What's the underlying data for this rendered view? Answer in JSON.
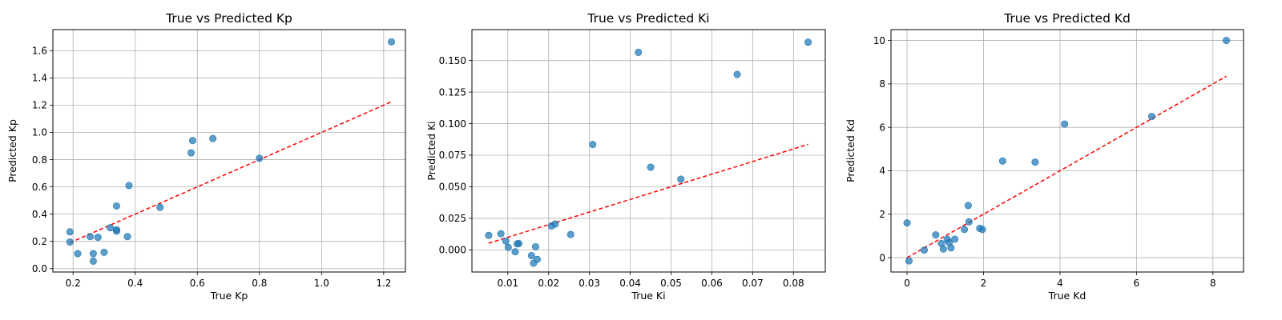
{
  "chart_data": [
    {
      "type": "scatter",
      "title": "True vs Predicted Kp",
      "xlabel": "True Kp",
      "ylabel": "Predicted Kp",
      "xlim": [
        0.135,
        1.27
      ],
      "ylim": [
        -0.025,
        1.755
      ],
      "xticks": [
        0.2,
        0.4,
        0.6,
        0.8,
        1.0,
        1.2
      ],
      "xtick_labels": [
        "0.2",
        "0.4",
        "0.6",
        "0.8",
        "1.0",
        "1.2"
      ],
      "yticks": [
        0.0,
        0.2,
        0.4,
        0.6,
        0.8,
        1.0,
        1.2,
        1.4,
        1.6
      ],
      "ytick_labels": [
        "0.0",
        "0.2",
        "0.4",
        "0.6",
        "0.8",
        "1.0",
        "1.2",
        "1.4",
        "1.6"
      ],
      "grid": true,
      "point_color": "#1f77b4",
      "line_color": "#ff0000",
      "diagonal": [
        0.19,
        1.225
      ],
      "points": [
        {
          "x": 0.19,
          "y": 0.27
        },
        {
          "x": 0.19,
          "y": 0.195
        },
        {
          "x": 0.215,
          "y": 0.11
        },
        {
          "x": 0.255,
          "y": 0.235
        },
        {
          "x": 0.265,
          "y": 0.11
        },
        {
          "x": 0.265,
          "y": 0.055
        },
        {
          "x": 0.28,
          "y": 0.23
        },
        {
          "x": 0.3,
          "y": 0.12
        },
        {
          "x": 0.32,
          "y": 0.3
        },
        {
          "x": 0.34,
          "y": 0.285
        },
        {
          "x": 0.34,
          "y": 0.275
        },
        {
          "x": 0.34,
          "y": 0.46
        },
        {
          "x": 0.375,
          "y": 0.235
        },
        {
          "x": 0.38,
          "y": 0.61
        },
        {
          "x": 0.48,
          "y": 0.45
        },
        {
          "x": 0.58,
          "y": 0.85
        },
        {
          "x": 0.585,
          "y": 0.94
        },
        {
          "x": 0.65,
          "y": 0.955
        },
        {
          "x": 0.8,
          "y": 0.81
        },
        {
          "x": 1.225,
          "y": 1.665
        }
      ]
    },
    {
      "type": "scatter",
      "title": "True vs Predicted Ki",
      "xlabel": "True Ki",
      "ylabel": "Predicted Ki",
      "xlim": [
        0.0012,
        0.0878
      ],
      "ylim": [
        -0.0175,
        0.1745
      ],
      "xticks": [
        0.01,
        0.02,
        0.03,
        0.04,
        0.05,
        0.06,
        0.07,
        0.08
      ],
      "xtick_labels": [
        "0.01",
        "0.02",
        "0.03",
        "0.04",
        "0.05",
        "0.06",
        "0.07",
        "0.08"
      ],
      "yticks": [
        0.0,
        0.025,
        0.05,
        0.075,
        0.1,
        0.125,
        0.15
      ],
      "ytick_labels": [
        "0.000",
        "0.025",
        "0.050",
        "0.075",
        "0.100",
        "0.125",
        "0.150"
      ],
      "grid": true,
      "point_color": "#1f77b4",
      "line_color": "#ff0000",
      "diagonal": [
        0.0053,
        0.0836
      ],
      "points": [
        {
          "x": 0.0053,
          "y": 0.0115
        },
        {
          "x": 0.0083,
          "y": 0.0128
        },
        {
          "x": 0.0095,
          "y": 0.007
        },
        {
          "x": 0.0101,
          "y": 0.002
        },
        {
          "x": 0.0118,
          "y": -0.0015
        },
        {
          "x": 0.0123,
          "y": 0.0048
        },
        {
          "x": 0.0127,
          "y": 0.005
        },
        {
          "x": 0.0158,
          "y": -0.0045
        },
        {
          "x": 0.0163,
          "y": -0.0105
        },
        {
          "x": 0.0168,
          "y": 0.0025
        },
        {
          "x": 0.0172,
          "y": -0.0075
        },
        {
          "x": 0.0207,
          "y": 0.019
        },
        {
          "x": 0.0216,
          "y": 0.0205
        },
        {
          "x": 0.0254,
          "y": 0.0122
        },
        {
          "x": 0.0308,
          "y": 0.0835
        },
        {
          "x": 0.042,
          "y": 0.1565
        },
        {
          "x": 0.045,
          "y": 0.0655
        },
        {
          "x": 0.0524,
          "y": 0.056
        },
        {
          "x": 0.0662,
          "y": 0.139
        },
        {
          "x": 0.0836,
          "y": 0.1645
        }
      ]
    },
    {
      "type": "scatter",
      "title": "True vs Predicted Kd",
      "xlabel": "True Kd",
      "ylabel": "Predicted Kd",
      "xlim": [
        -0.42,
        8.8
      ],
      "ylim": [
        -0.66,
        10.5
      ],
      "xticks": [
        0,
        2,
        4,
        6,
        8
      ],
      "xtick_labels": [
        "0",
        "2",
        "4",
        "6",
        "8"
      ],
      "yticks": [
        0,
        2,
        4,
        6,
        8,
        10
      ],
      "ytick_labels": [
        "0",
        "2",
        "4",
        "6",
        "8",
        "10"
      ],
      "grid": true,
      "point_color": "#1f77b4",
      "line_color": "#ff0000",
      "diagonal": [
        0.0,
        8.35
      ],
      "points": [
        {
          "x": 0.0,
          "y": 1.6
        },
        {
          "x": 0.05,
          "y": -0.15
        },
        {
          "x": 0.45,
          "y": 0.35
        },
        {
          "x": 0.75,
          "y": 1.05
        },
        {
          "x": 0.9,
          "y": 0.65
        },
        {
          "x": 0.95,
          "y": 0.4
        },
        {
          "x": 1.05,
          "y": 0.85
        },
        {
          "x": 1.1,
          "y": 0.7
        },
        {
          "x": 1.15,
          "y": 0.45
        },
        {
          "x": 1.25,
          "y": 0.85
        },
        {
          "x": 1.5,
          "y": 1.3
        },
        {
          "x": 1.6,
          "y": 2.4
        },
        {
          "x": 1.62,
          "y": 1.65
        },
        {
          "x": 1.9,
          "y": 1.35
        },
        {
          "x": 1.97,
          "y": 1.3
        },
        {
          "x": 2.5,
          "y": 4.45
        },
        {
          "x": 3.35,
          "y": 4.4
        },
        {
          "x": 4.12,
          "y": 6.15
        },
        {
          "x": 6.4,
          "y": 6.5
        },
        {
          "x": 8.35,
          "y": 10.0
        }
      ]
    }
  ]
}
